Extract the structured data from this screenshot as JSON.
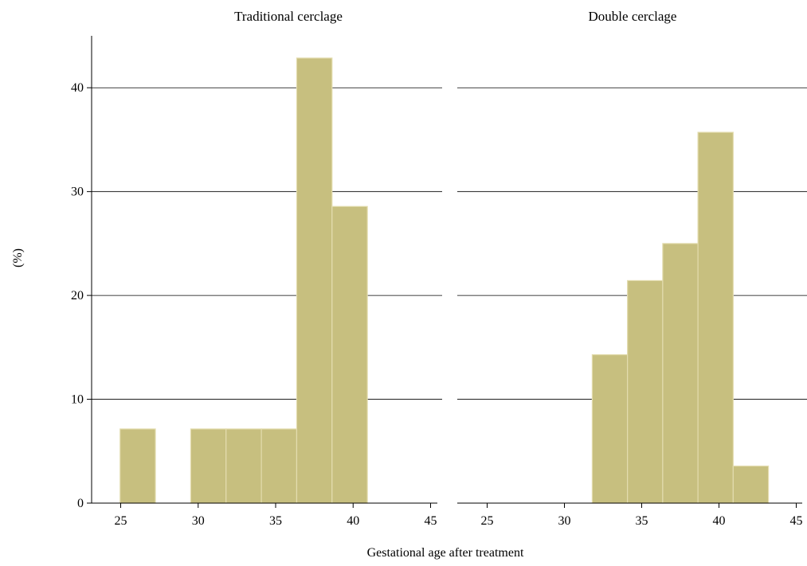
{
  "chart_data": {
    "type": "bar",
    "xlabel": "Gestational age after treatment",
    "ylabel": "(%)",
    "ylim": [
      0,
      45
    ],
    "yticks": [
      0,
      10,
      20,
      30,
      40
    ],
    "xticks": [
      25,
      30,
      35,
      40,
      45
    ],
    "xlim": [
      23,
      46
    ],
    "bin_width": 2.28,
    "grid": "horizontal",
    "colors": {
      "bar_fill": "#c7bf7f",
      "bar_edge": "#e3dcae",
      "grid": "#000000"
    },
    "panels": [
      {
        "title": "Traditional cerclage",
        "bins": [
          {
            "x0": 24.96,
            "x1": 27.24,
            "value": 7.14
          },
          {
            "x0": 27.24,
            "x1": 29.52,
            "value": 0
          },
          {
            "x0": 29.52,
            "x1": 31.8,
            "value": 7.14
          },
          {
            "x0": 31.8,
            "x1": 34.08,
            "value": 7.14
          },
          {
            "x0": 34.08,
            "x1": 36.36,
            "value": 7.14
          },
          {
            "x0": 36.36,
            "x1": 38.64,
            "value": 42.86
          },
          {
            "x0": 38.64,
            "x1": 40.92,
            "value": 28.57
          }
        ]
      },
      {
        "title": "Double cerclage",
        "bins": [
          {
            "x0": 31.8,
            "x1": 34.08,
            "value": 14.29
          },
          {
            "x0": 34.08,
            "x1": 36.36,
            "value": 21.43
          },
          {
            "x0": 36.36,
            "x1": 38.64,
            "value": 25.0
          },
          {
            "x0": 38.64,
            "x1": 40.92,
            "value": 35.71
          },
          {
            "x0": 40.92,
            "x1": 43.2,
            "value": 3.57
          }
        ]
      }
    ]
  }
}
